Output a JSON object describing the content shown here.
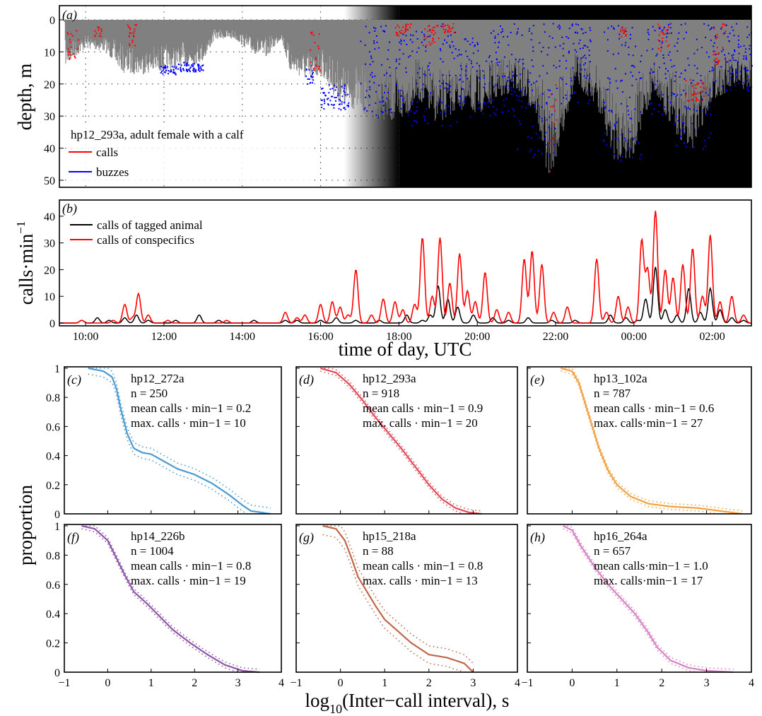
{
  "figure": {
    "xlabel_bottom": "log10(Inter−call interval), s",
    "ylabel_bottom": "proportion"
  },
  "chart_data": [
    {
      "id": "a",
      "panel_label": "(a)",
      "type": "area",
      "ylabel": "depth, m",
      "ylim": [
        52,
        0
      ],
      "yticks": [
        0,
        10,
        20,
        30,
        40,
        50
      ],
      "xticks_hours": [
        10,
        12,
        14,
        16,
        18,
        20,
        22,
        24,
        26
      ],
      "xlim_hours": [
        9.33,
        27.0
      ],
      "grid": true,
      "annotation": "hp12_293a, adult female with a calf",
      "legend": [
        {
          "name": "calls",
          "color": "#ff0000"
        },
        {
          "name": "buzzes",
          "color": "#0000ff"
        }
      ],
      "dive_color": "#808080",
      "night_shading": {
        "fade_start": 16.6,
        "fade_end": 18.0,
        "color": "#000000"
      },
      "max_depth_envelope": [
        [
          9.5,
          14
        ],
        [
          10.0,
          9
        ],
        [
          10.5,
          10
        ],
        [
          11.0,
          17
        ],
        [
          11.5,
          17
        ],
        [
          12.0,
          16
        ],
        [
          12.5,
          15
        ],
        [
          13.0,
          13
        ],
        [
          13.3,
          6
        ],
        [
          13.8,
          6
        ],
        [
          14.2,
          10
        ],
        [
          14.6,
          12
        ],
        [
          15.0,
          6
        ],
        [
          15.2,
          16
        ],
        [
          15.5,
          18
        ],
        [
          15.8,
          20
        ],
        [
          16.0,
          17
        ],
        [
          16.3,
          23
        ],
        [
          16.6,
          28
        ],
        [
          17.0,
          28
        ],
        [
          17.2,
          31
        ],
        [
          17.6,
          31
        ],
        [
          18.0,
          33
        ],
        [
          18.5,
          25
        ],
        [
          19.0,
          33
        ],
        [
          19.5,
          28
        ],
        [
          20.0,
          30
        ],
        [
          20.5,
          25
        ],
        [
          21.0,
          22
        ],
        [
          21.5,
          30
        ],
        [
          21.8,
          49
        ],
        [
          22.0,
          45
        ],
        [
          22.5,
          20
        ],
        [
          23.0,
          26
        ],
        [
          23.5,
          44
        ],
        [
          24.0,
          43
        ],
        [
          24.5,
          22
        ],
        [
          25.0,
          35
        ],
        [
          25.5,
          41
        ],
        [
          26.0,
          25
        ],
        [
          26.5,
          22
        ],
        [
          27.0,
          22
        ]
      ],
      "buzz_depth_bands": [
        [
          11.9,
          12.3,
          14,
          17
        ],
        [
          12.3,
          13.0,
          13,
          16
        ],
        [
          15.6,
          15.8,
          15,
          20
        ],
        [
          16.0,
          16.7,
          20,
          28
        ],
        [
          17.0,
          17.8,
          1,
          31
        ],
        [
          17.9,
          18.8,
          2,
          33
        ],
        [
          19.0,
          20.0,
          1,
          33
        ],
        [
          20.0,
          21.0,
          1,
          30
        ],
        [
          21.0,
          22.0,
          1,
          43
        ],
        [
          22.0,
          22.9,
          1,
          26
        ],
        [
          23.2,
          24.2,
          1,
          44
        ],
        [
          24.3,
          25.0,
          1,
          30
        ],
        [
          25.0,
          26.0,
          1,
          40
        ],
        [
          26.0,
          27.0,
          1,
          22
        ]
      ],
      "call_depth_bands": [
        [
          9.5,
          9.8,
          3,
          13
        ],
        [
          10.2,
          10.4,
          2,
          5
        ],
        [
          11.0,
          11.3,
          1,
          8
        ],
        [
          15.7,
          16.0,
          1,
          16
        ],
        [
          17.9,
          18.3,
          1,
          5
        ],
        [
          18.6,
          19.0,
          1,
          8
        ],
        [
          19.1,
          19.4,
          1,
          4
        ],
        [
          21.8,
          22.0,
          20,
          48
        ],
        [
          23.6,
          23.8,
          2,
          5
        ],
        [
          24.6,
          24.9,
          1,
          10
        ],
        [
          25.3,
          25.8,
          18,
          25
        ],
        [
          26.0,
          26.4,
          1,
          14
        ]
      ]
    },
    {
      "id": "b",
      "panel_label": "(b)",
      "type": "line",
      "ylabel": "calls·min−1",
      "xlabel": "time of day, UTC",
      "ylim": [
        0,
        45
      ],
      "yticks": [
        0,
        10,
        20,
        30,
        40
      ],
      "xlim_hours": [
        9.33,
        27.0
      ],
      "xticks_hours": [
        10,
        12,
        14,
        16,
        18,
        20,
        22,
        24,
        26
      ],
      "xtick_labels": [
        "10:00",
        "12:00",
        "14:00",
        "16:00",
        "18:00",
        "20:00",
        "22:00",
        "00:00",
        "02:00"
      ],
      "series": [
        {
          "name": "calls of tagged animal",
          "color": "#000000",
          "peaks": [
            [
              9.9,
              1
            ],
            [
              10.3,
              2
            ],
            [
              10.6,
              1
            ],
            [
              11.0,
              2
            ],
            [
              11.3,
              3
            ],
            [
              11.6,
              1
            ],
            [
              12.3,
              1
            ],
            [
              12.9,
              3
            ],
            [
              13.4,
              1
            ],
            [
              14.3,
              1
            ],
            [
              15.1,
              1
            ],
            [
              15.4,
              1
            ],
            [
              16.0,
              1
            ],
            [
              16.4,
              2
            ],
            [
              16.9,
              1
            ],
            [
              17.5,
              1
            ],
            [
              18.2,
              3
            ],
            [
              18.6,
              1
            ],
            [
              18.8,
              3
            ],
            [
              19.0,
              14
            ],
            [
              19.25,
              9
            ],
            [
              19.5,
              6
            ],
            [
              19.9,
              3
            ],
            [
              20.4,
              2
            ],
            [
              20.8,
              1
            ],
            [
              21.3,
              2
            ],
            [
              21.9,
              1
            ],
            [
              22.5,
              1
            ],
            [
              23.4,
              3
            ],
            [
              23.8,
              2
            ],
            [
              24.1,
              1
            ],
            [
              24.3,
              9
            ],
            [
              24.55,
              21
            ],
            [
              24.8,
              5
            ],
            [
              25.1,
              3
            ],
            [
              25.4,
              13
            ],
            [
              25.7,
              4
            ],
            [
              25.95,
              13
            ],
            [
              26.2,
              5
            ],
            [
              26.5,
              2
            ],
            [
              26.8,
              1
            ]
          ]
        },
        {
          "name": "calls of conspecifics",
          "color": "#ff0000",
          "peaks": [
            [
              9.9,
              1
            ],
            [
              10.7,
              1
            ],
            [
              11.0,
              7
            ],
            [
              11.2,
              2
            ],
            [
              11.35,
              11
            ],
            [
              11.6,
              3
            ],
            [
              12.1,
              1
            ],
            [
              13.6,
              1
            ],
            [
              15.1,
              4
            ],
            [
              15.4,
              2
            ],
            [
              15.6,
              3
            ],
            [
              16.0,
              7
            ],
            [
              16.3,
              8
            ],
            [
              16.5,
              6
            ],
            [
              16.7,
              3
            ],
            [
              16.9,
              20
            ],
            [
              17.3,
              3
            ],
            [
              17.6,
              9
            ],
            [
              17.9,
              8
            ],
            [
              18.1,
              5
            ],
            [
              18.4,
              7
            ],
            [
              18.6,
              32
            ],
            [
              18.85,
              10
            ],
            [
              19.05,
              32
            ],
            [
              19.3,
              15
            ],
            [
              19.55,
              26
            ],
            [
              19.75,
              12
            ],
            [
              19.95,
              8
            ],
            [
              20.2,
              19
            ],
            [
              20.5,
              5
            ],
            [
              20.8,
              4
            ],
            [
              21.2,
              24
            ],
            [
              21.4,
              27
            ],
            [
              21.65,
              22
            ],
            [
              21.95,
              4
            ],
            [
              22.3,
              6
            ],
            [
              23.05,
              24
            ],
            [
              23.3,
              4
            ],
            [
              23.6,
              10
            ],
            [
              23.85,
              6
            ],
            [
              24.2,
              31
            ],
            [
              24.35,
              20
            ],
            [
              24.55,
              42
            ],
            [
              24.8,
              20
            ],
            [
              25.0,
              17
            ],
            [
              25.25,
              22
            ],
            [
              25.5,
              28
            ],
            [
              25.75,
              10
            ],
            [
              25.95,
              33
            ],
            [
              26.2,
              8
            ],
            [
              26.5,
              10
            ],
            [
              26.8,
              3
            ]
          ]
        }
      ]
    },
    {
      "id": "c",
      "panel_label": "(c)",
      "type": "line",
      "tag": "hp12_272a",
      "n": "n = 250",
      "mean_text": "mean calls · min−1 = 0.2",
      "max_text": "max. calls · min−1 = 10",
      "color": "#4a9ad4",
      "xlim": [
        -1,
        4
      ],
      "ylim": [
        0,
        1
      ],
      "ci_width": 0.04,
      "ecdf": [
        [
          -0.45,
          1.0
        ],
        [
          -0.1,
          0.98
        ],
        [
          0.1,
          0.94
        ],
        [
          0.2,
          0.86
        ],
        [
          0.3,
          0.72
        ],
        [
          0.45,
          0.55
        ],
        [
          0.6,
          0.45
        ],
        [
          0.8,
          0.42
        ],
        [
          1.0,
          0.41
        ],
        [
          1.3,
          0.36
        ],
        [
          1.6,
          0.31
        ],
        [
          2.0,
          0.27
        ],
        [
          2.4,
          0.21
        ],
        [
          2.8,
          0.13
        ],
        [
          3.1,
          0.06
        ],
        [
          3.3,
          0.02
        ],
        [
          3.75,
          0.0
        ]
      ]
    },
    {
      "id": "d",
      "panel_label": "(d)",
      "type": "line",
      "tag": "hp12_293a",
      "n": "n = 918",
      "mean_text": "mean calls · min−1 = 0.9",
      "max_text": "max. calls · min−1 = 20",
      "color": "#e04a58",
      "xlim": [
        -1,
        4
      ],
      "ylim": [
        0,
        1
      ],
      "ci_width": 0.02,
      "ecdf": [
        [
          -0.45,
          1.0
        ],
        [
          -0.1,
          0.97
        ],
        [
          0.2,
          0.89
        ],
        [
          0.5,
          0.78
        ],
        [
          0.8,
          0.66
        ],
        [
          1.1,
          0.55
        ],
        [
          1.4,
          0.44
        ],
        [
          1.7,
          0.32
        ],
        [
          2.0,
          0.2
        ],
        [
          2.3,
          0.1
        ],
        [
          2.6,
          0.04
        ],
        [
          2.9,
          0.01
        ],
        [
          3.2,
          0.0
        ]
      ]
    },
    {
      "id": "e",
      "panel_label": "(e)",
      "type": "line",
      "tag": "hp13_102a",
      "n": "n = 787",
      "mean_text": "mean calls · min−1 = 0.6",
      "max_text": "max. calls·min−1 = 27",
      "color": "#f4a040",
      "xlim": [
        -1,
        4
      ],
      "ylim": [
        0,
        1
      ],
      "ci_width": 0.02,
      "ecdf": [
        [
          -0.25,
          1.0
        ],
        [
          0.0,
          0.98
        ],
        [
          0.15,
          0.9
        ],
        [
          0.3,
          0.75
        ],
        [
          0.45,
          0.6
        ],
        [
          0.6,
          0.45
        ],
        [
          0.8,
          0.3
        ],
        [
          1.0,
          0.2
        ],
        [
          1.3,
          0.12
        ],
        [
          1.7,
          0.07
        ],
        [
          2.2,
          0.05
        ],
        [
          2.8,
          0.04
        ],
        [
          3.3,
          0.02
        ],
        [
          3.8,
          0.0
        ]
      ]
    },
    {
      "id": "f",
      "panel_label": "(f)",
      "type": "line",
      "tag": "hp14_226b",
      "n": "n = 1004",
      "mean_text": "mean calls · min−1 = 0.8",
      "max_text": "max. calls · min−1 = 19",
      "color": "#8e55a8",
      "xlim": [
        -1,
        4
      ],
      "ylim": [
        0,
        1
      ],
      "ci_width": 0.02,
      "ecdf": [
        [
          -0.6,
          1.0
        ],
        [
          -0.3,
          0.98
        ],
        [
          0.0,
          0.9
        ],
        [
          0.2,
          0.78
        ],
        [
          0.4,
          0.66
        ],
        [
          0.6,
          0.55
        ],
        [
          0.9,
          0.47
        ],
        [
          1.2,
          0.38
        ],
        [
          1.5,
          0.29
        ],
        [
          1.9,
          0.2
        ],
        [
          2.3,
          0.12
        ],
        [
          2.7,
          0.05
        ],
        [
          3.1,
          0.01
        ],
        [
          3.5,
          0.0
        ]
      ]
    },
    {
      "id": "g",
      "panel_label": "(g)",
      "type": "line",
      "tag": "hp15_218a",
      "n": "n = 88",
      "mean_text": "mean calls · min−1 = 0.8",
      "max_text": "max. calls · min−1 = 13",
      "color": "#c2664a",
      "xlim": [
        -1,
        4
      ],
      "ylim": [
        0,
        1
      ],
      "ci_width": 0.06,
      "ecdf": [
        [
          -0.4,
          1.0
        ],
        [
          -0.1,
          0.98
        ],
        [
          0.1,
          0.9
        ],
        [
          0.25,
          0.78
        ],
        [
          0.4,
          0.65
        ],
        [
          0.6,
          0.55
        ],
        [
          0.8,
          0.45
        ],
        [
          1.0,
          0.36
        ],
        [
          1.3,
          0.28
        ],
        [
          1.6,
          0.2
        ],
        [
          2.0,
          0.12
        ],
        [
          2.4,
          0.1
        ],
        [
          2.8,
          0.06
        ],
        [
          3.0,
          0.0
        ]
      ]
    },
    {
      "id": "h",
      "panel_label": "(h)",
      "type": "line",
      "tag": "hp16_264a",
      "n": "n = 657",
      "mean_text": "mean calls·min−1 = 1.0",
      "max_text": "max. calls·min−1 = 17",
      "color": "#d97fc2",
      "xlim": [
        -1,
        4
      ],
      "ylim": [
        0,
        1
      ],
      "ci_width": 0.02,
      "ecdf": [
        [
          -0.2,
          1.0
        ],
        [
          0.0,
          0.97
        ],
        [
          0.2,
          0.86
        ],
        [
          0.5,
          0.72
        ],
        [
          0.8,
          0.6
        ],
        [
          1.1,
          0.5
        ],
        [
          1.4,
          0.4
        ],
        [
          1.7,
          0.27
        ],
        [
          1.9,
          0.17
        ],
        [
          2.2,
          0.08
        ],
        [
          2.6,
          0.03
        ],
        [
          3.0,
          0.01
        ],
        [
          3.6,
          0.0
        ]
      ]
    }
  ]
}
